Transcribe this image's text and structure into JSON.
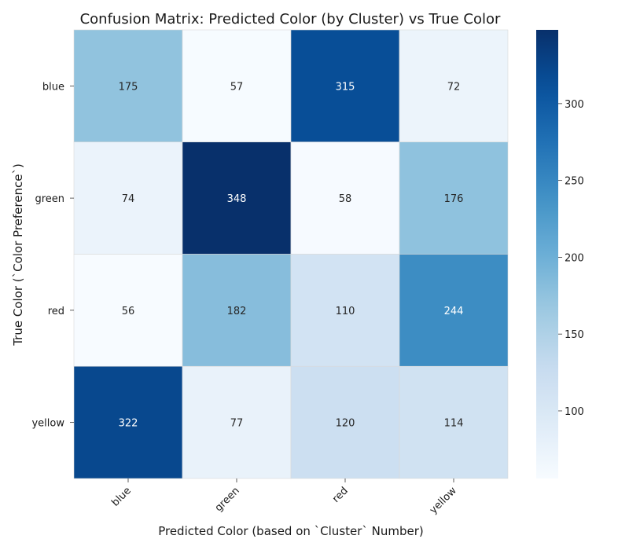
{
  "chart_data": {
    "type": "heatmap",
    "title": "Confusion Matrix: Predicted Color (by Cluster) vs True Color",
    "xlabel": "Predicted Color (based on `Cluster` Number)",
    "ylabel": "True Color (`Color Preference`)",
    "x_categories": [
      "blue",
      "green",
      "red",
      "yellow"
    ],
    "y_categories": [
      "blue",
      "green",
      "red",
      "yellow"
    ],
    "values": [
      [
        175,
        57,
        315,
        72
      ],
      [
        74,
        348,
        58,
        176
      ],
      [
        56,
        182,
        110,
        244
      ],
      [
        322,
        77,
        120,
        114
      ]
    ],
    "colorbar": {
      "min": 56,
      "max": 348,
      "ticks": [
        100,
        150,
        200,
        250,
        300
      ],
      "colormap": "Blues"
    },
    "grid": false
  }
}
